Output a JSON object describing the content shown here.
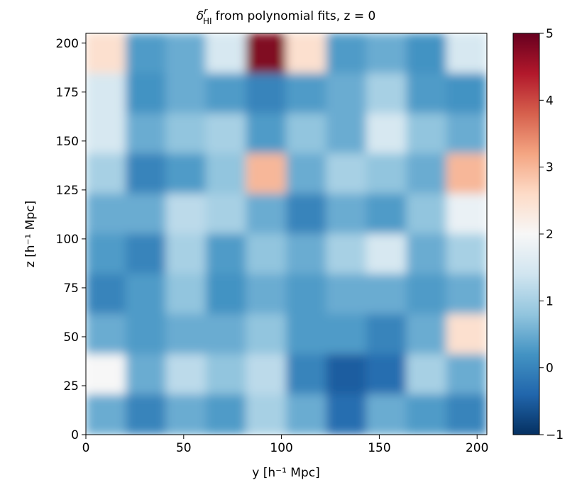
{
  "chart_data": {
    "type": "heatmap",
    "title": {
      "symbol": "δ",
      "superscript": "r",
      "subscript": "HI",
      "text": "from polynomial fits, z = 0"
    },
    "xlabel": "y [h⁻¹ Mpc]",
    "ylabel": "z [h⁻¹ Mpc]",
    "xlim": [
      0,
      205
    ],
    "ylim": [
      0,
      205
    ],
    "xticks": [
      0,
      50,
      100,
      150,
      200
    ],
    "yticks": [
      0,
      25,
      50,
      75,
      100,
      125,
      150,
      175,
      200
    ],
    "z": [
      [
        2.5,
        0.3,
        0.5,
        1.5,
        4.8,
        2.5,
        0.3,
        0.5,
        0.2,
        1.5
      ],
      [
        1.5,
        0.2,
        0.5,
        0.3,
        0.0,
        0.3,
        0.5,
        1.0,
        0.3,
        0.2
      ],
      [
        1.5,
        0.5,
        0.8,
        1.0,
        0.3,
        0.8,
        0.5,
        1.5,
        0.8,
        0.5
      ],
      [
        1.0,
        0.0,
        0.3,
        0.8,
        3.0,
        0.5,
        1.0,
        0.8,
        0.5,
        3.0
      ],
      [
        0.5,
        0.5,
        1.2,
        1.0,
        0.5,
        0.0,
        0.5,
        0.3,
        0.8,
        1.8
      ],
      [
        0.3,
        0.0,
        1.0,
        0.3,
        0.8,
        0.5,
        1.0,
        1.5,
        0.5,
        1.0
      ],
      [
        0.0,
        0.3,
        0.8,
        0.2,
        0.5,
        0.3,
        0.5,
        0.5,
        0.3,
        0.5
      ],
      [
        0.5,
        0.3,
        0.5,
        0.5,
        0.8,
        0.3,
        0.3,
        0.0,
        0.5,
        2.5
      ],
      [
        2.0,
        0.5,
        1.2,
        0.8,
        1.2,
        0.0,
        -0.5,
        -0.3,
        1.0,
        0.5
      ],
      [
        0.5,
        0.0,
        0.5,
        0.3,
        1.0,
        0.5,
        -0.3,
        0.5,
        0.3,
        0.0
      ]
    ],
    "colorscale": [
      "#053061",
      "#2166ac",
      "#4393c3",
      "#92c5de",
      "#d1e5f0",
      "#f7f7f7",
      "#fddbc7",
      "#f4a582",
      "#d6604d",
      "#b2182b",
      "#67001f"
    ],
    "clim": [
      -1,
      5
    ],
    "cticks": [
      {
        "value": -1,
        "label": "−1"
      },
      0,
      1,
      2,
      3,
      4,
      5
    ]
  }
}
